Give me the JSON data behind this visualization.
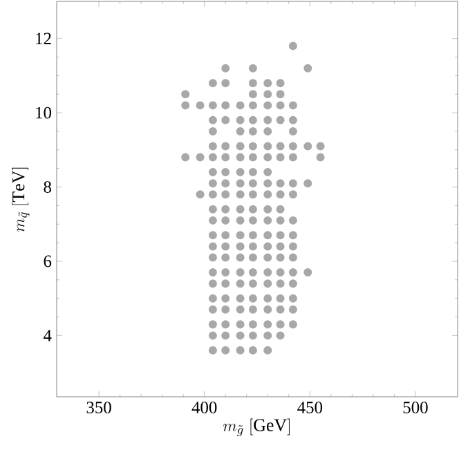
{
  "chart_data": {
    "type": "scatter",
    "xlabel": "m_{\\tilde{g}}\\ [\\mathrm{GeV}]",
    "ylabel": "m_{\\tilde{q}}\\ [\\mathrm{TeV}]",
    "xlim": [
      330,
      520
    ],
    "xticks": [
      350,
      400,
      450,
      500
    ],
    "ylim": [
      2.35,
      13
    ],
    "yticks": [
      4,
      6,
      8,
      10,
      12
    ],
    "marker": "circle",
    "series": [
      {
        "color": "#a8a8a8",
        "x": [
          442,
          410,
          423,
          449,
          404,
          410,
          423,
          430,
          436,
          391,
          423,
          430,
          436,
          391,
          398,
          404,
          410,
          417,
          423,
          430,
          436,
          442,
          404,
          410,
          417,
          423,
          430,
          436,
          442,
          404,
          417,
          423,
          430,
          442,
          404,
          410,
          417,
          423,
          430,
          436,
          442,
          449,
          455,
          391,
          398,
          404,
          410,
          417,
          423,
          430,
          436,
          442,
          455,
          404,
          410,
          417,
          423,
          430,
          404,
          410,
          417,
          423,
          430,
          436,
          442,
          449,
          398,
          404,
          410,
          417,
          423,
          430,
          436,
          442,
          404,
          410,
          417,
          423,
          430,
          436,
          404,
          410,
          417,
          423,
          430,
          436,
          442,
          404,
          410,
          417,
          423,
          430,
          436,
          442,
          404,
          410,
          417,
          423,
          430,
          436,
          442,
          404,
          410,
          417,
          423,
          430,
          436,
          442,
          404,
          410,
          417,
          423,
          430,
          436,
          442,
          449,
          404,
          410,
          417,
          423,
          430,
          436,
          442,
          404,
          410,
          417,
          423,
          430,
          436,
          442,
          404,
          410,
          417,
          423,
          430,
          436,
          442,
          404,
          410,
          417,
          423,
          430,
          436,
          442,
          404,
          410,
          417,
          423,
          430,
          436,
          404,
          410,
          417,
          423,
          430
        ],
        "values": [
          11.8,
          11.2,
          11.2,
          11.2,
          10.8,
          10.8,
          10.8,
          10.8,
          10.8,
          10.5,
          10.5,
          10.5,
          10.5,
          10.2,
          10.2,
          10.2,
          10.2,
          10.2,
          10.2,
          10.2,
          10.2,
          10.2,
          9.8,
          9.8,
          9.8,
          9.8,
          9.8,
          9.8,
          9.8,
          9.5,
          9.5,
          9.5,
          9.5,
          9.5,
          9.1,
          9.1,
          9.1,
          9.1,
          9.1,
          9.1,
          9.1,
          9.1,
          9.1,
          8.8,
          8.8,
          8.8,
          8.8,
          8.8,
          8.8,
          8.8,
          8.8,
          8.8,
          8.8,
          8.4,
          8.4,
          8.4,
          8.4,
          8.4,
          8.1,
          8.1,
          8.1,
          8.1,
          8.1,
          8.1,
          8.1,
          8.1,
          7.8,
          7.8,
          7.8,
          7.8,
          7.8,
          7.8,
          7.8,
          7.8,
          7.4,
          7.4,
          7.4,
          7.4,
          7.4,
          7.4,
          7.1,
          7.1,
          7.1,
          7.1,
          7.1,
          7.1,
          7.1,
          6.7,
          6.7,
          6.7,
          6.7,
          6.7,
          6.7,
          6.7,
          6.4,
          6.4,
          6.4,
          6.4,
          6.4,
          6.4,
          6.4,
          6.1,
          6.1,
          6.1,
          6.1,
          6.1,
          6.1,
          6.1,
          5.7,
          5.7,
          5.7,
          5.7,
          5.7,
          5.7,
          5.7,
          5.7,
          5.4,
          5.4,
          5.4,
          5.4,
          5.4,
          5.4,
          5.4,
          5.0,
          5.0,
          5.0,
          5.0,
          5.0,
          5.0,
          5.0,
          4.7,
          4.7,
          4.7,
          4.7,
          4.7,
          4.7,
          4.7,
          4.3,
          4.3,
          4.3,
          4.3,
          4.3,
          4.3,
          4.3,
          4.0,
          4.0,
          4.0,
          4.0,
          4.0,
          4.0,
          3.6,
          3.6,
          3.6,
          3.6,
          3.6
        ]
      }
    ]
  }
}
